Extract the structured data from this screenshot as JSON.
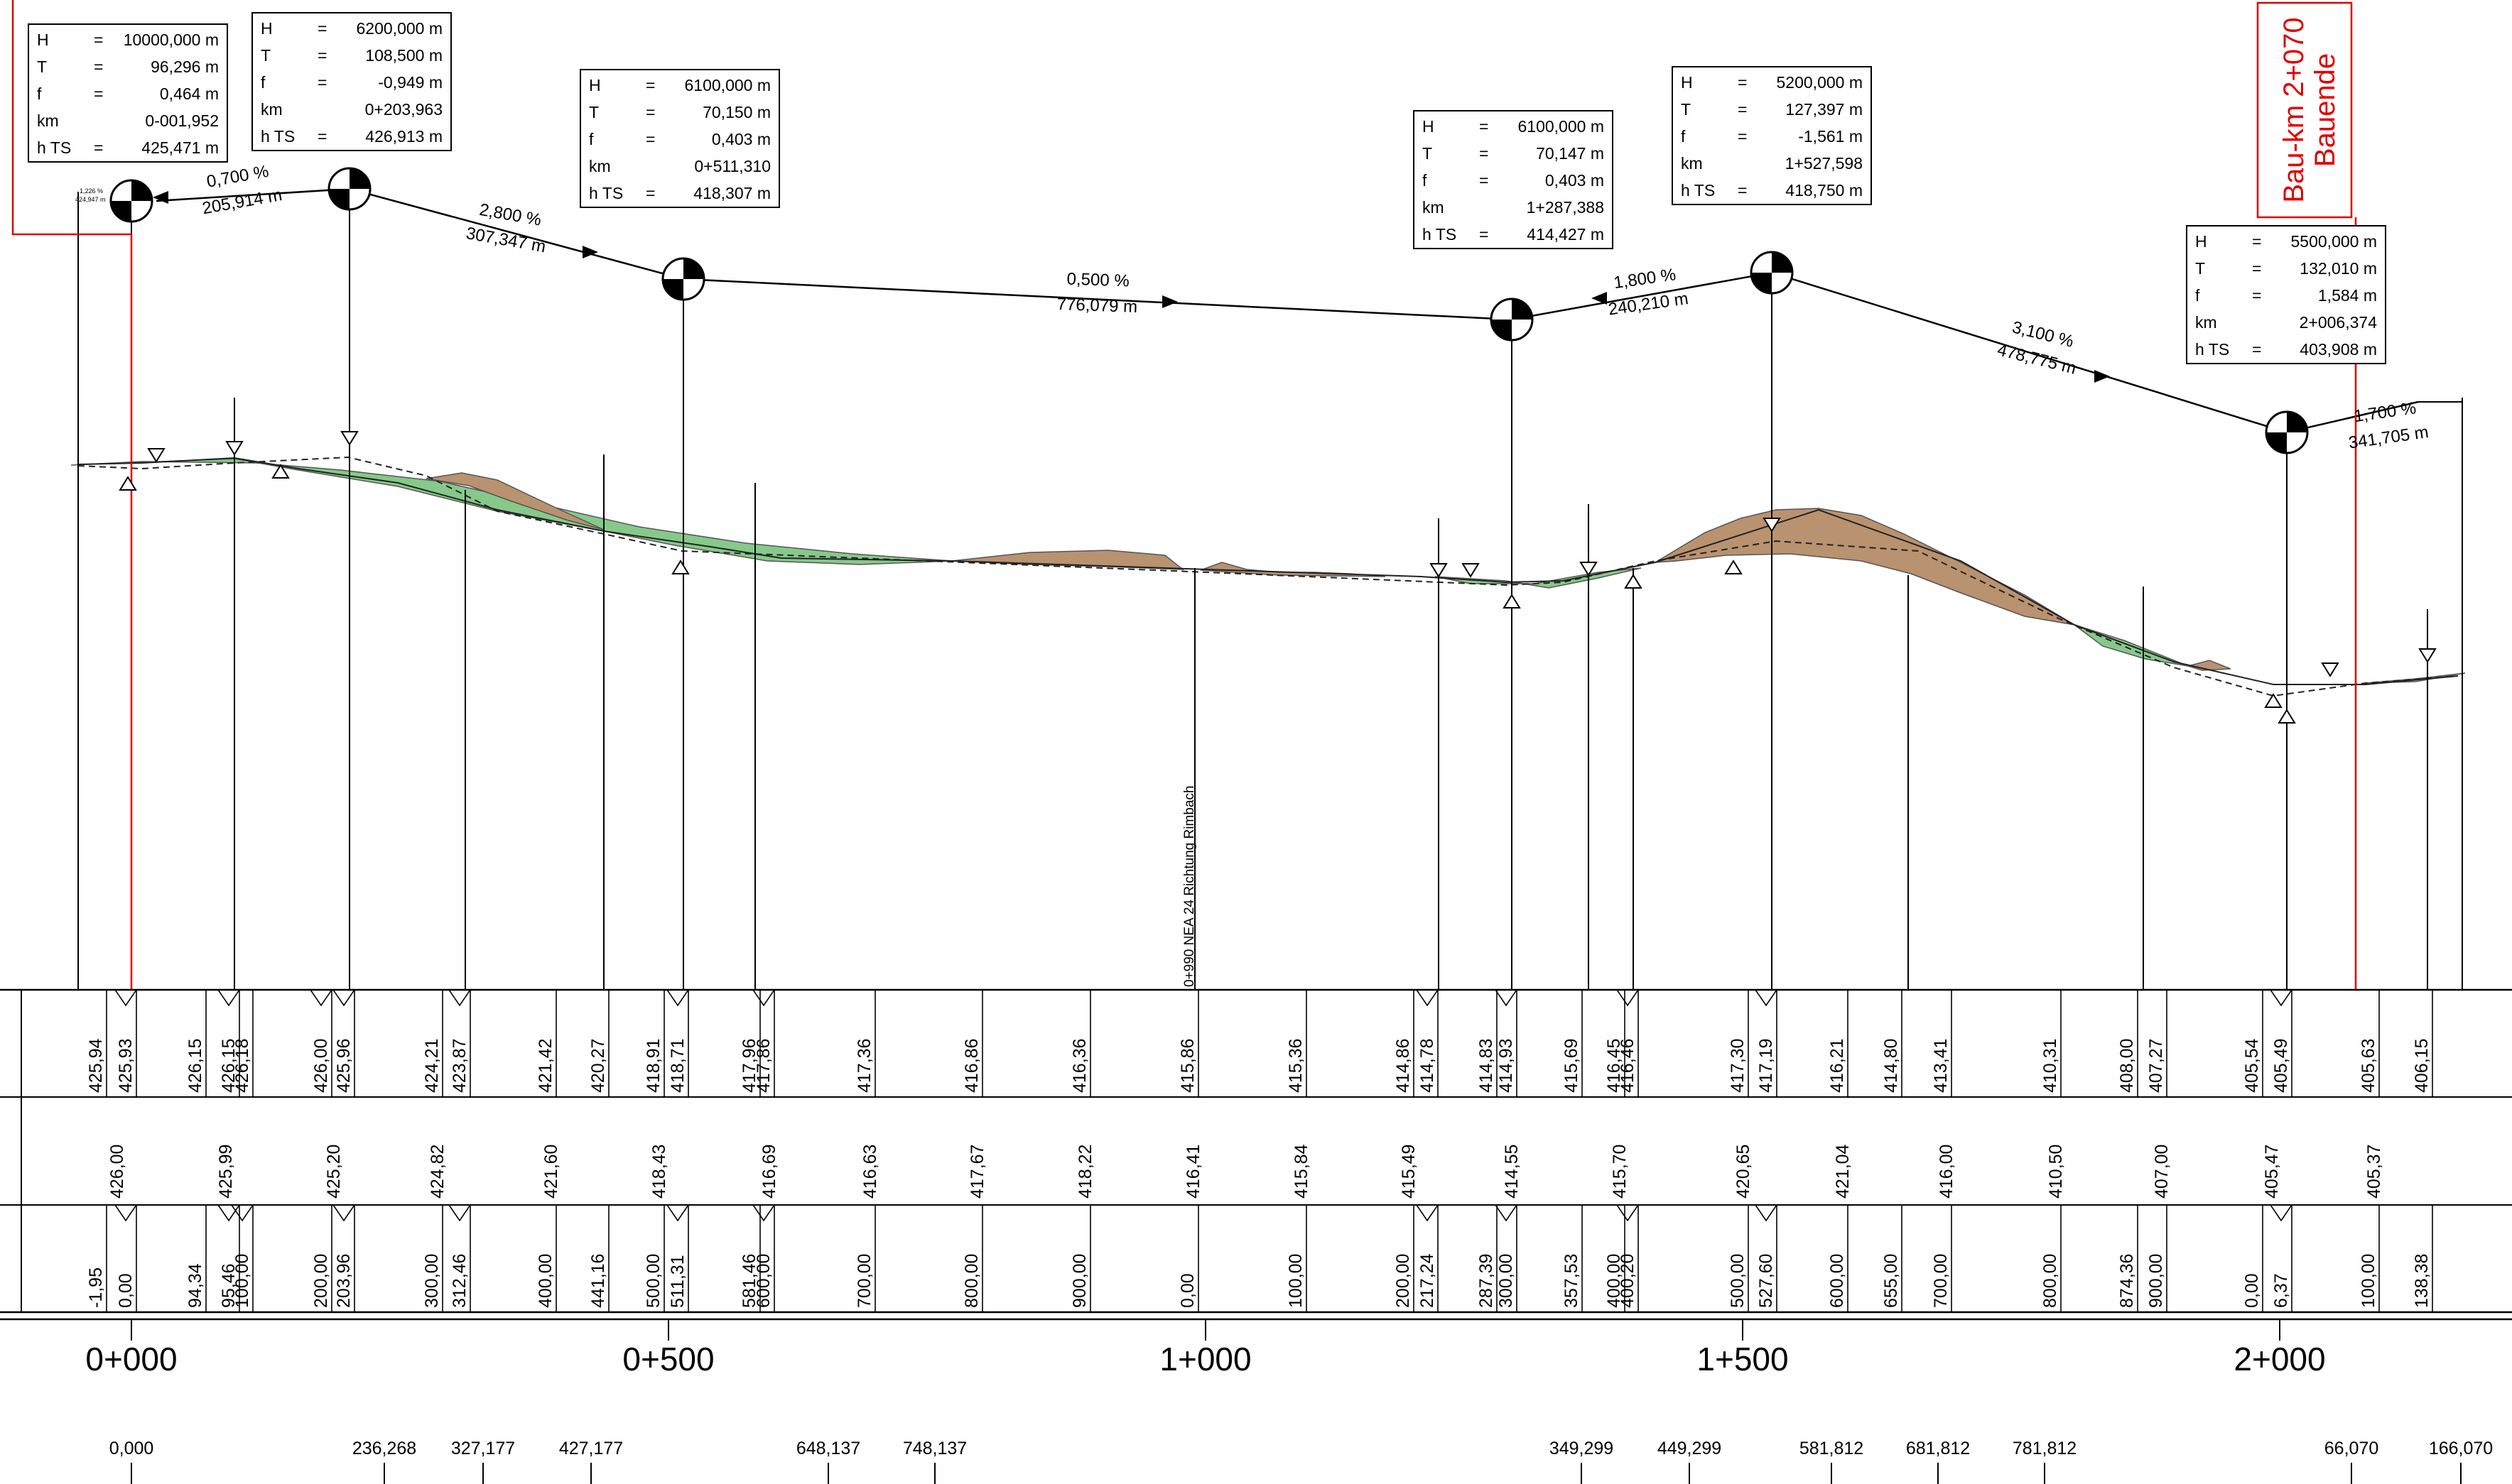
{
  "bauende": {
    "line1": "Bauende",
    "line2": "Bau-km 2+070"
  },
  "curve_keys": [
    "H",
    "T",
    "f",
    "km",
    "h TS"
  ],
  "curve_tables": [
    {
      "id": "vk-1",
      "H": "10000,000 m",
      "T": "96,296 m",
      "f": "0,464 m",
      "km": "0-001,952",
      "hts": "425,471 m"
    },
    {
      "id": "vk-2",
      "H": "6200,000 m",
      "T": "108,500 m",
      "f": "-0,949 m",
      "km": "0+203,963",
      "hts": "426,913 m"
    },
    {
      "id": "vk-3",
      "H": "6100,000 m",
      "T": "70,150 m",
      "f": "0,403 m",
      "km": "0+511,310",
      "hts": "418,307 m"
    },
    {
      "id": "vk-4",
      "H": "6100,000 m",
      "T": "70,147 m",
      "f": "0,403 m",
      "km": "1+287,388",
      "hts": "414,427 m"
    },
    {
      "id": "vk-5",
      "H": "5200,000 m",
      "T": "127,397 m",
      "f": "-1,561 m",
      "km": "1+527,598",
      "hts": "418,750 m"
    },
    {
      "id": "vk-6",
      "H": "5500,000 m",
      "T": "132,010 m",
      "f": "1,584 m",
      "km": "2+006,374",
      "hts": "403,908 m"
    }
  ],
  "grades": [
    {
      "pct": "0,700 %",
      "len": "205,914 m"
    },
    {
      "pct": "2,800 %",
      "len": "307,347 m"
    },
    {
      "pct": "0,500 %",
      "len": "776,079 m"
    },
    {
      "pct": "1,800 %",
      "len": "240,210 m"
    },
    {
      "pct": "3,100 %",
      "len": "478,775 m"
    },
    {
      "pct": "1,700 %",
      "len": "341,705 m"
    }
  ],
  "tiny_label": {
    "line1": "1,226 %",
    "line2": "424,947 m"
  },
  "crossing_label": "0+990 NEA 24 Richtung Rimbach",
  "band_row1": [
    {
      "v": "425,94"
    },
    {
      "v": "425,93"
    },
    {
      "v": "426,15"
    },
    {
      "v": "426,15"
    },
    {
      "v": "426,18"
    },
    {
      "v": "426,00"
    },
    {
      "v": "425,96"
    },
    {
      "v": "424,21"
    },
    {
      "v": "423,87"
    },
    {
      "v": "421,42"
    },
    {
      "v": "420,27"
    },
    {
      "v": "418,91"
    },
    {
      "v": "418,71"
    },
    {
      "v": "417,96"
    },
    {
      "v": "417,86"
    },
    {
      "v": "417,36"
    },
    {
      "v": "416,86"
    },
    {
      "v": "416,36"
    },
    {
      "v": "415,86"
    },
    {
      "v": "415,36"
    },
    {
      "v": "414,86"
    },
    {
      "v": "414,78"
    },
    {
      "v": "414,83"
    },
    {
      "v": "414,93"
    },
    {
      "v": "415,69"
    },
    {
      "v": "416,45"
    },
    {
      "v": "416,46"
    },
    {
      "v": "417,30"
    },
    {
      "v": "417,19"
    },
    {
      "v": "416,21"
    },
    {
      "v": "414,80"
    },
    {
      "v": "413,41"
    },
    {
      "v": "410,31"
    },
    {
      "v": "408,00"
    },
    {
      "v": "407,27"
    },
    {
      "v": "405,54"
    },
    {
      "v": "405,49"
    },
    {
      "v": "405,63"
    },
    {
      "v": "406,15"
    }
  ],
  "band_row2": [
    {
      "v": "426,00"
    },
    {
      "v": "425,99"
    },
    {
      "v": "425,20"
    },
    {
      "v": "424,82"
    },
    {
      "v": "421,60"
    },
    {
      "v": "418,43"
    },
    {
      "v": "416,69"
    },
    {
      "v": "416,63"
    },
    {
      "v": "417,67"
    },
    {
      "v": "418,22"
    },
    {
      "v": "416,41"
    },
    {
      "v": "415,84"
    },
    {
      "v": "415,49"
    },
    {
      "v": "414,55"
    },
    {
      "v": "415,70"
    },
    {
      "v": "420,65"
    },
    {
      "v": "421,04"
    },
    {
      "v": "416,00"
    },
    {
      "v": "410,50"
    },
    {
      "v": "407,00"
    },
    {
      "v": "405,47"
    },
    {
      "v": "405,37"
    }
  ],
  "band_row3": [
    {
      "v": "-1,95"
    },
    {
      "v": "0,00"
    },
    {
      "v": "94,34"
    },
    {
      "v": "95,46"
    },
    {
      "v": "100,00"
    },
    {
      "v": "200,00"
    },
    {
      "v": "203,96"
    },
    {
      "v": "300,00"
    },
    {
      "v": "312,46"
    },
    {
      "v": "400,00"
    },
    {
      "v": "441,16"
    },
    {
      "v": "500,00"
    },
    {
      "v": "511,31"
    },
    {
      "v": "581,46"
    },
    {
      "v": "600,00"
    },
    {
      "v": "700,00"
    },
    {
      "v": "800,00"
    },
    {
      "v": "900,00"
    },
    {
      "v": "0,00"
    },
    {
      "v": "100,00"
    },
    {
      "v": "200,00"
    },
    {
      "v": "217,24"
    },
    {
      "v": "287,39"
    },
    {
      "v": "300,00"
    },
    {
      "v": "357,53"
    },
    {
      "v": "400,00"
    },
    {
      "v": "400,20"
    },
    {
      "v": "500,00"
    },
    {
      "v": "527,60"
    },
    {
      "v": "600,00"
    },
    {
      "v": "655,00"
    },
    {
      "v": "700,00"
    },
    {
      "v": "800,00"
    },
    {
      "v": "874,36"
    },
    {
      "v": "900,00"
    },
    {
      "v": "0,00"
    },
    {
      "v": "6,37"
    },
    {
      "v": "100,00"
    },
    {
      "v": "138,38"
    }
  ],
  "km_labels": [
    "0+000",
    "0+500",
    "1+000",
    "1+500",
    "2+000"
  ],
  "bottom_stations": [
    "0,000",
    "236,268",
    "327,177",
    "427,177",
    "648,137",
    "748,137",
    "349,299",
    "449,299",
    "581,812",
    "681,812",
    "781,812",
    "66,070",
    "166,070"
  ]
}
